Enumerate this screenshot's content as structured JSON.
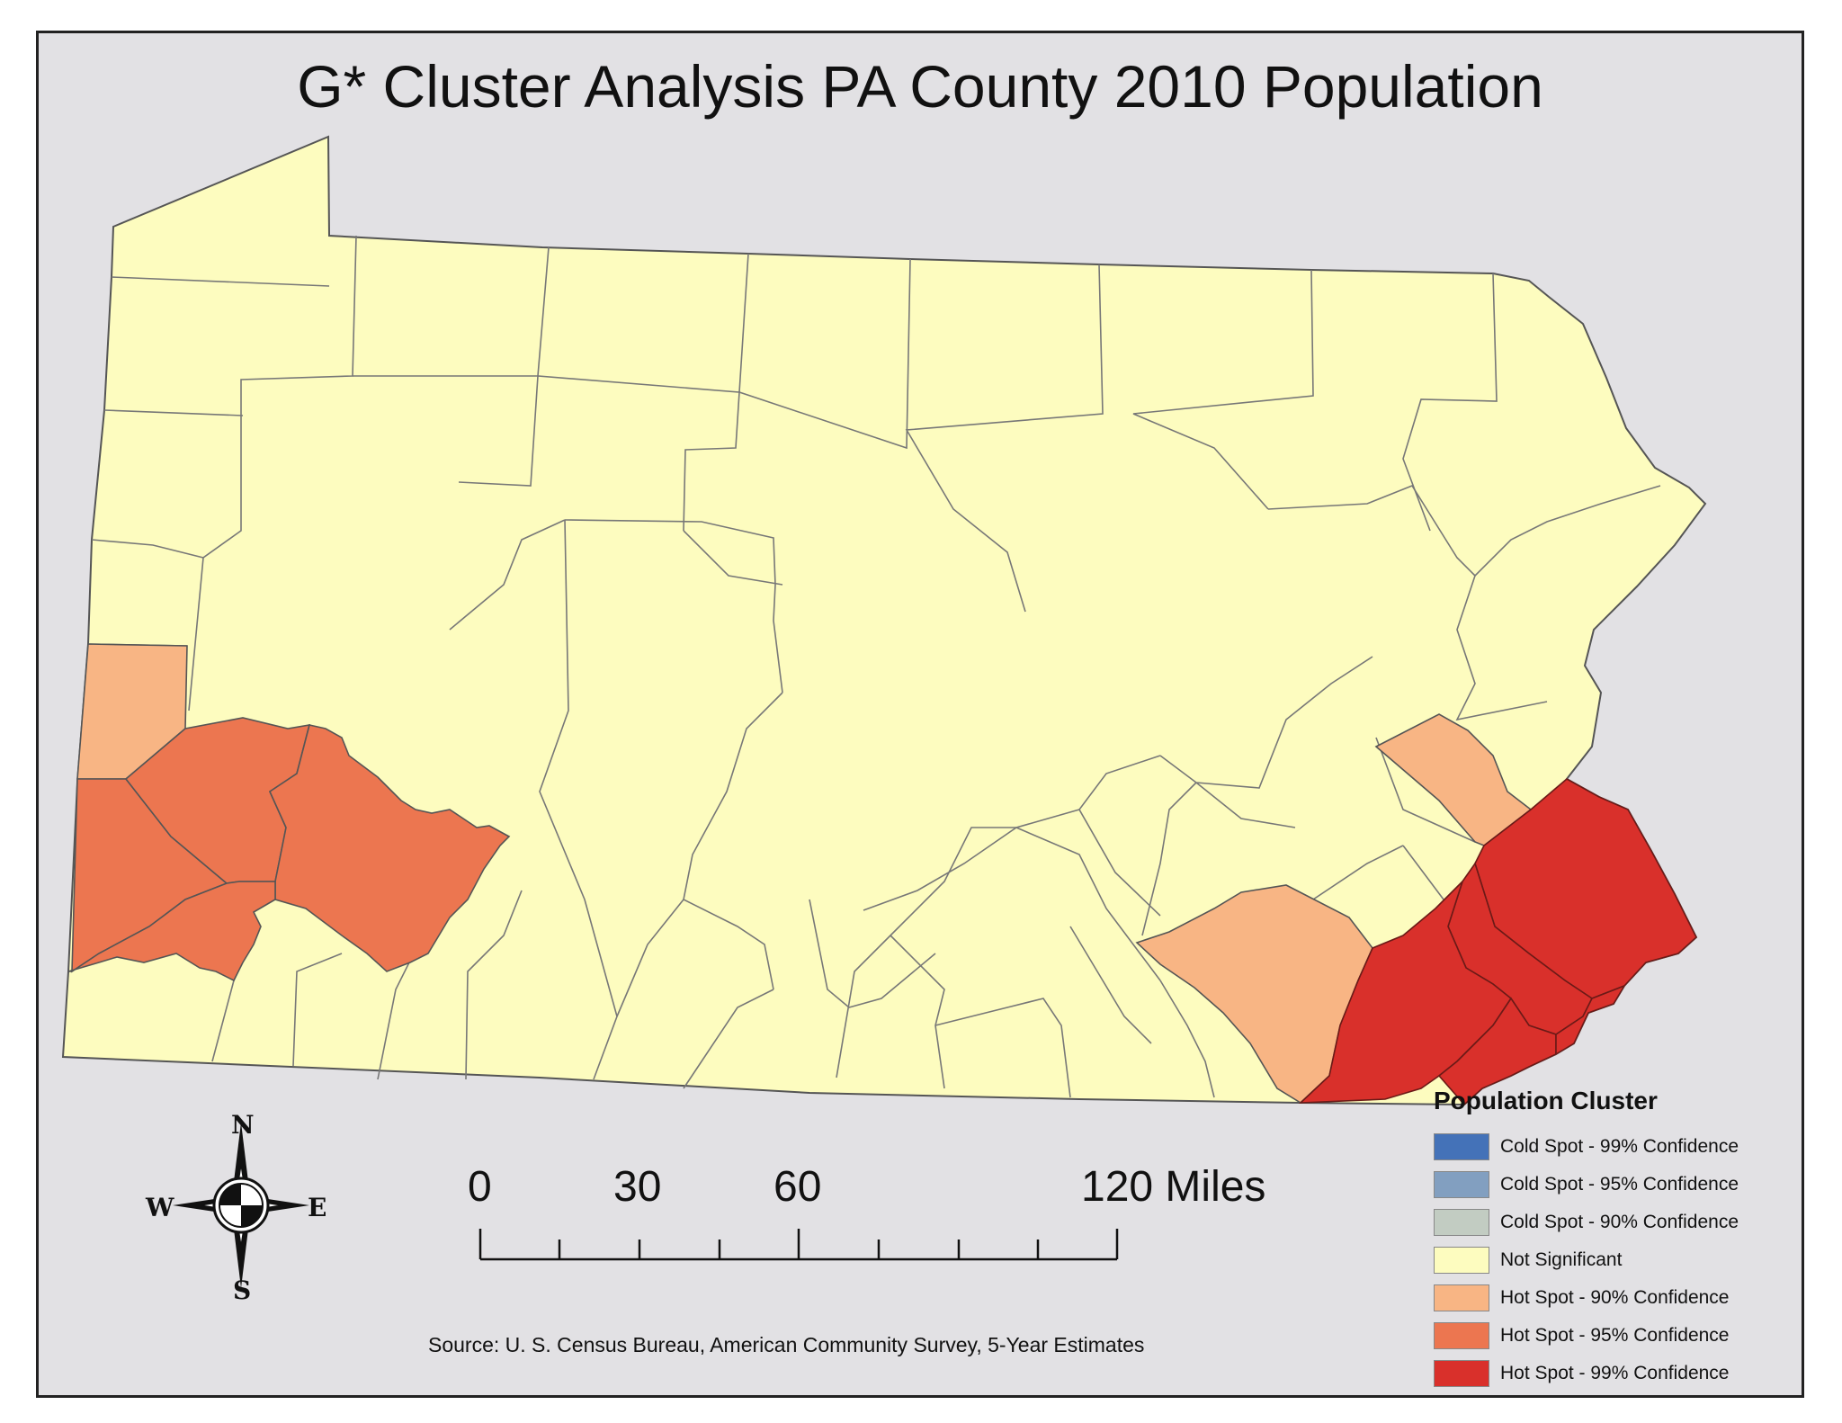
{
  "title": "G* Cluster Analysis PA County 2010 Population",
  "legend": {
    "title": "Population Cluster",
    "items": [
      {
        "label": "Cold Spot - 99% Confidence",
        "color": "#4472b8"
      },
      {
        "label": "Cold Spot - 95% Confidence",
        "color": "#829fc0"
      },
      {
        "label": "Cold Spot - 90% Confidence",
        "color": "#c2ccc2"
      },
      {
        "label": "Not Significant",
        "color": "#fdfcbf"
      },
      {
        "label": "Hot Spot - 90% Confidence",
        "color": "#f8b584"
      },
      {
        "label": "Hot Spot - 95% Confidence",
        "color": "#ec7650"
      },
      {
        "label": "Hot Spot - 99% Confidence",
        "color": "#d9302b"
      }
    ]
  },
  "scale": {
    "labels": [
      "0",
      "30",
      "60",
      "120 Miles"
    ]
  },
  "compass": {
    "n": "N",
    "s": "S",
    "e": "E",
    "w": "W"
  },
  "source": "Source: U. S. Census Bureau, American Community Survey, 5-Year Estimates"
}
